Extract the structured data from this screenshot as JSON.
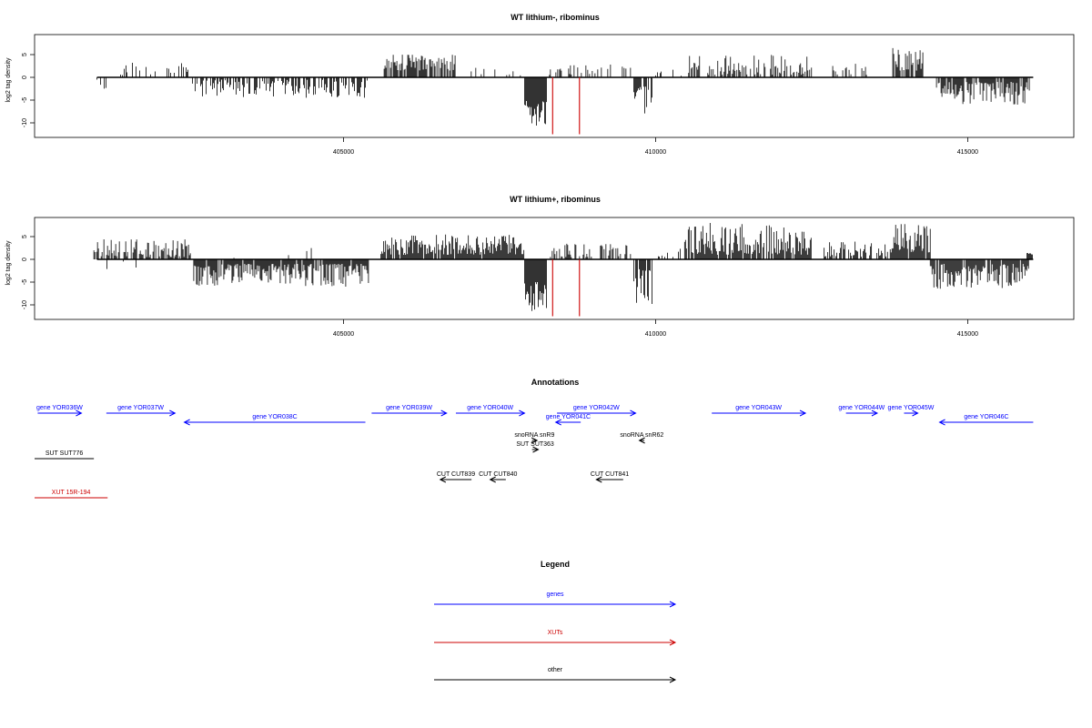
{
  "chart_data": [
    {
      "type": "bar",
      "title": "WT lithium-, ribominus",
      "ylabel": "log2 tag density",
      "xlim": [
        400050,
        416700
      ],
      "ylim": [
        -13,
        9
      ],
      "x_ticks": [
        405000,
        410000,
        415000
      ],
      "x_tick_labels": [
        "405000",
        "410000",
        "415000"
      ],
      "y_ticks": [
        5,
        0,
        -5,
        -10
      ],
      "y_tick_labels": [
        "5",
        "0",
        "-5",
        "-10"
      ],
      "grid": false,
      "series": [
        {
          "color": "#000000",
          "segments": [
            {
              "start": 401050,
              "end": 401350,
              "sign": -1,
              "min": 0.5,
              "max": 3.5,
              "density": 0.15
            },
            {
              "start": 401400,
              "end": 402550,
              "sign": 1,
              "min": 0.5,
              "max": 3.5,
              "density": 0.35
            },
            {
              "start": 402580,
              "end": 405400,
              "sign": -1,
              "min": 0.5,
              "max": 4.5,
              "density": 0.55
            },
            {
              "start": 405650,
              "end": 406800,
              "sign": 1,
              "min": 1.5,
              "max": 5,
              "density": 0.8
            },
            {
              "start": 406900,
              "end": 407850,
              "sign": 1,
              "min": 0.3,
              "max": 2.5,
              "density": 0.15
            },
            {
              "start": 407900,
              "end": 408250,
              "sign": -1,
              "min": 5,
              "max": 11,
              "density": 1.0
            },
            {
              "start": 408300,
              "end": 409600,
              "sign": 1,
              "min": 0.5,
              "max": 3,
              "density": 0.3
            },
            {
              "start": 409650,
              "end": 409950,
              "sign": -1,
              "min": 2,
              "max": 9,
              "density": 0.8
            },
            {
              "start": 410000,
              "end": 410450,
              "sign": 1,
              "min": 0.3,
              "max": 2.5,
              "density": 0.2
            },
            {
              "start": 410500,
              "end": 412500,
              "sign": 1,
              "min": 0.5,
              "max": 5,
              "density": 0.45
            },
            {
              "start": 412750,
              "end": 413500,
              "sign": 1,
              "min": 0.5,
              "max": 3,
              "density": 0.3
            },
            {
              "start": 413800,
              "end": 414300,
              "sign": 1,
              "min": 1.5,
              "max": 7,
              "density": 0.8
            },
            {
              "start": 414500,
              "end": 416000,
              "sign": -1,
              "min": 1,
              "max": 6,
              "density": 0.8
            }
          ]
        },
        {
          "color": "#cc0000",
          "lines": [
            {
              "x": 408350,
              "y": -12.5
            },
            {
              "x": 408780,
              "y": -12.5
            }
          ]
        }
      ]
    },
    {
      "type": "bar",
      "title": "WT lithium+, ribominus",
      "ylabel": "log2 tag density",
      "xlim": [
        400050,
        416700
      ],
      "ylim": [
        -13,
        9
      ],
      "x_ticks": [
        405000,
        410000,
        415000
      ],
      "x_tick_labels": [
        "405000",
        "410000",
        "415000"
      ],
      "y_ticks": [
        5,
        0,
        -5,
        -10
      ],
      "y_tick_labels": [
        "5",
        "0",
        "-5",
        "-10"
      ],
      "grid": false,
      "series": [
        {
          "color": "#000000",
          "segments": [
            {
              "start": 401000,
              "end": 402550,
              "sign": 1,
              "min": 0.5,
              "max": 4.5,
              "density": 0.7
            },
            {
              "start": 401050,
              "end": 401700,
              "sign": -1,
              "min": 0.3,
              "max": 3,
              "density": 0.15
            },
            {
              "start": 402600,
              "end": 405400,
              "sign": -1,
              "min": 1,
              "max": 6,
              "density": 0.9
            },
            {
              "start": 403200,
              "end": 404700,
              "sign": 1,
              "min": 0.3,
              "max": 2.5,
              "density": 0.08
            },
            {
              "start": 405600,
              "end": 407900,
              "sign": 1,
              "min": 1,
              "max": 5.5,
              "density": 0.95
            },
            {
              "start": 407900,
              "end": 408250,
              "sign": -1,
              "min": 5,
              "max": 12,
              "density": 1.0
            },
            {
              "start": 408300,
              "end": 409600,
              "sign": 1,
              "min": 0.5,
              "max": 3.5,
              "density": 0.55
            },
            {
              "start": 409650,
              "end": 409950,
              "sign": -1,
              "min": 2,
              "max": 10,
              "density": 0.85
            },
            {
              "start": 410000,
              "end": 410450,
              "sign": 1,
              "min": 0.3,
              "max": 2.5,
              "density": 0.3
            },
            {
              "start": 410450,
              "end": 412500,
              "sign": 1,
              "min": 1,
              "max": 8,
              "density": 0.95
            },
            {
              "start": 412700,
              "end": 413700,
              "sign": 1,
              "min": 0.5,
              "max": 4,
              "density": 0.6
            },
            {
              "start": 413700,
              "end": 414400,
              "sign": 1,
              "min": 1.5,
              "max": 8,
              "density": 0.9
            },
            {
              "start": 414400,
              "end": 416000,
              "sign": -1,
              "min": 1,
              "max": 6.5,
              "density": 0.9
            },
            {
              "start": 415950,
              "end": 416050,
              "sign": 1,
              "min": 1,
              "max": 1.5,
              "density": 1.0
            }
          ]
        },
        {
          "color": "#cc0000",
          "lines": [
            {
              "x": 408350,
              "y": -12.5
            },
            {
              "x": 408780,
              "y": -12.5
            }
          ]
        }
      ]
    },
    {
      "type": "other",
      "title": "Annotations",
      "xlim": [
        400050,
        416700
      ],
      "features": [
        {
          "label": "gene YOR036W",
          "start": 400100,
          "end": 400800,
          "strand": "+",
          "row": 0,
          "color": "#0000ff"
        },
        {
          "label": "gene YOR037W",
          "start": 401200,
          "end": 402300,
          "strand": "+",
          "row": 0,
          "color": "#0000ff"
        },
        {
          "label": "gene YOR038C",
          "start": 402450,
          "end": 405350,
          "strand": "-",
          "row": 1,
          "color": "#0000ff"
        },
        {
          "label": "gene YOR039W",
          "start": 405450,
          "end": 406650,
          "strand": "+",
          "row": 0,
          "color": "#0000ff"
        },
        {
          "label": "gene YOR040W",
          "start": 406800,
          "end": 407900,
          "strand": "+",
          "row": 0,
          "color": "#0000ff"
        },
        {
          "label": "gene YOR041C",
          "start": 408400,
          "end": 408800,
          "strand": "-",
          "row": 1,
          "color": "#0000ff"
        },
        {
          "label": "gene YOR042W",
          "start": 408420,
          "end": 409680,
          "strand": "+",
          "row": 0,
          "color": "#0000ff"
        },
        {
          "label": "gene YOR043W",
          "start": 410900,
          "end": 412400,
          "strand": "+",
          "row": 0,
          "color": "#0000ff"
        },
        {
          "label": "gene YOR044W",
          "start": 413050,
          "end": 413550,
          "strand": "+",
          "row": 0,
          "color": "#0000ff"
        },
        {
          "label": "gene YOR045W",
          "start": 413980,
          "end": 414200,
          "strand": "+",
          "row": 0,
          "color": "#0000ff"
        },
        {
          "label": "gene YOR046C",
          "start": 414550,
          "end": 416050,
          "strand": "-",
          "row": 1,
          "color": "#0000ff"
        },
        {
          "label": "snoRNA snR9",
          "start": 408020,
          "end": 408100,
          "strand": "+",
          "row": 2,
          "color": "#000000"
        },
        {
          "label": "snoRNA snR62",
          "start": 409740,
          "end": 409820,
          "strand": "-",
          "row": 2,
          "color": "#000000"
        },
        {
          "label": "SUT SUT363",
          "start": 408020,
          "end": 408120,
          "strand": "+",
          "row": 3,
          "color": "#000000"
        },
        {
          "label": "SUT SUT776",
          "start": 400050,
          "end": 401000,
          "strand": "+",
          "row": 4,
          "color": "#000000"
        },
        {
          "label": "CUT CUT839",
          "start": 406550,
          "end": 407050,
          "strand": "-",
          "row": 5,
          "color": "#000000"
        },
        {
          "label": "CUT CUT840",
          "start": 407350,
          "end": 407600,
          "strand": "-",
          "row": 5,
          "color": "#000000"
        },
        {
          "label": "CUT CUT841",
          "start": 409050,
          "end": 409480,
          "strand": "-",
          "row": 5,
          "color": "#000000"
        },
        {
          "label": "XUT 15R-194",
          "start": 400050,
          "end": 401220,
          "strand": "+",
          "row": 6,
          "color": "#cc0000"
        }
      ]
    },
    {
      "type": "other",
      "title": "Legend",
      "entries": [
        {
          "label": "genes",
          "color": "#0000ff"
        },
        {
          "label": "XUTs",
          "color": "#cc0000"
        },
        {
          "label": "other",
          "color": "#000000"
        }
      ]
    }
  ]
}
